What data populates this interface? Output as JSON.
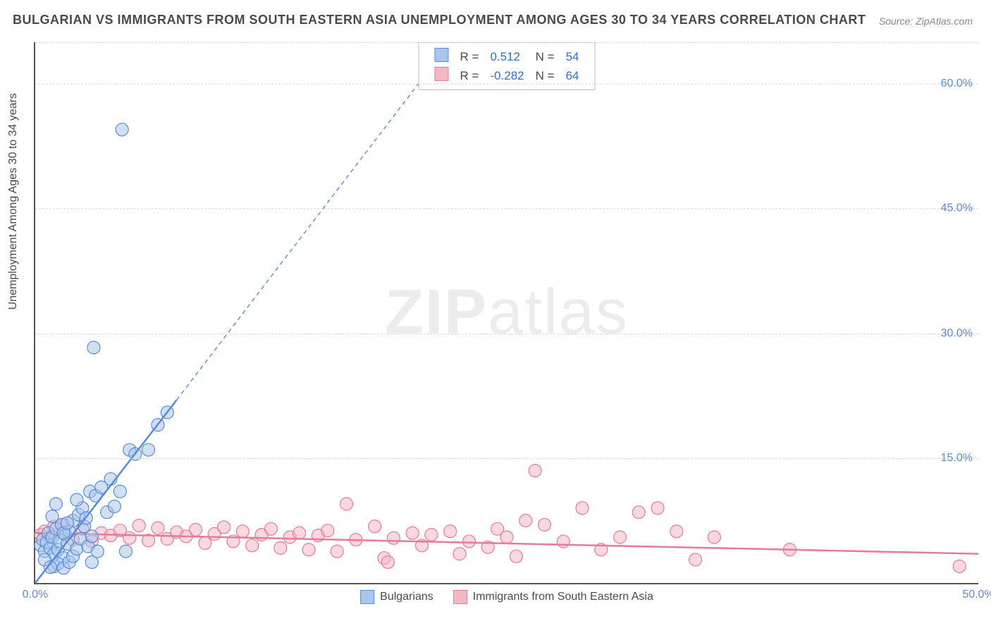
{
  "title": "BULGARIAN VS IMMIGRANTS FROM SOUTH EASTERN ASIA UNEMPLOYMENT AMONG AGES 30 TO 34 YEARS CORRELATION CHART",
  "source": "Source: ZipAtlas.com",
  "ylabel": "Unemployment Among Ages 30 to 34 years",
  "watermark_a": "ZIP",
  "watermark_b": "atlas",
  "chart": {
    "type": "scatter",
    "background_color": "#ffffff",
    "grid_color": "#d9d9d9",
    "axis_color": "#555555",
    "tick_color": "#5b8bd4",
    "xlim": [
      0,
      50
    ],
    "ylim": [
      0,
      65
    ],
    "yticks": [
      15,
      30,
      45,
      60
    ],
    "ytick_labels": [
      "15.0%",
      "30.0%",
      "45.0%",
      "60.0%"
    ],
    "xticks": [
      0,
      50
    ],
    "xtick_labels": [
      "0.0%",
      "50.0%"
    ],
    "marker_radius": 9,
    "marker_opacity": 0.55,
    "series": [
      {
        "name": "Bulgarians",
        "color_fill": "#a7c7ec",
        "color_stroke": "#5b8bd4",
        "r_label": "R =",
        "r_value": "0.512",
        "n_label": "N =",
        "n_value": "54",
        "trend": {
          "x1": 0,
          "y1": 0,
          "x2": 7.5,
          "y2": 22,
          "dash_to_x": 22,
          "dash_to_y": 65,
          "width": 2.5
        },
        "points": [
          [
            0.3,
            4.5
          ],
          [
            0.4,
            5.2
          ],
          [
            0.5,
            3.8
          ],
          [
            0.6,
            4.9
          ],
          [
            0.7,
            6.0
          ],
          [
            0.8,
            4.2
          ],
          [
            0.9,
            5.5
          ],
          [
            1.0,
            3.5
          ],
          [
            1.1,
            6.5
          ],
          [
            1.2,
            4.0
          ],
          [
            1.3,
            5.0
          ],
          [
            1.4,
            7.0
          ],
          [
            1.5,
            3.0
          ],
          [
            1.6,
            5.8
          ],
          [
            1.7,
            4.7
          ],
          [
            1.8,
            6.2
          ],
          [
            1.0,
            2.0
          ],
          [
            1.2,
            2.3
          ],
          [
            1.5,
            1.8
          ],
          [
            1.8,
            2.5
          ],
          [
            2.0,
            3.2
          ],
          [
            0.5,
            2.8
          ],
          [
            0.8,
            1.9
          ],
          [
            2.2,
            4.1
          ],
          [
            2.4,
            5.3
          ],
          [
            2.6,
            6.8
          ],
          [
            2.8,
            4.4
          ],
          [
            3.0,
            5.6
          ],
          [
            2.0,
            7.5
          ],
          [
            2.3,
            8.2
          ],
          [
            2.5,
            9.0
          ],
          [
            2.2,
            10.0
          ],
          [
            2.7,
            7.8
          ],
          [
            2.9,
            11.0
          ],
          [
            3.2,
            10.5
          ],
          [
            3.5,
            11.5
          ],
          [
            3.8,
            8.5
          ],
          [
            4.0,
            12.5
          ],
          [
            4.2,
            9.2
          ],
          [
            4.5,
            11.0
          ],
          [
            5.0,
            16.0
          ],
          [
            5.3,
            15.5
          ],
          [
            6.0,
            16.0
          ],
          [
            6.5,
            19.0
          ],
          [
            7.0,
            20.5
          ],
          [
            4.8,
            3.8
          ],
          [
            3.0,
            2.5
          ],
          [
            3.3,
            3.8
          ],
          [
            1.5,
            6.0
          ],
          [
            1.7,
            7.2
          ],
          [
            0.9,
            8.0
          ],
          [
            1.1,
            9.5
          ],
          [
            3.1,
            28.3
          ],
          [
            4.6,
            54.5
          ]
        ]
      },
      {
        "name": "Immigrants from South Eastern Asia",
        "color_fill": "#f4b8c5",
        "color_stroke": "#e77a97",
        "r_label": "R =",
        "r_value": "-0.282",
        "n_label": "N =",
        "n_value": "64",
        "trend": {
          "x1": 0,
          "y1": 6.0,
          "x2": 50,
          "y2": 3.5,
          "width": 2.5
        },
        "points": [
          [
            0.3,
            5.8
          ],
          [
            0.5,
            6.2
          ],
          [
            0.8,
            5.5
          ],
          [
            1.0,
            6.8
          ],
          [
            1.5,
            7.0
          ],
          [
            2.0,
            5.2
          ],
          [
            2.5,
            6.5
          ],
          [
            3.0,
            5.0
          ],
          [
            3.5,
            6.0
          ],
          [
            4.0,
            5.7
          ],
          [
            4.5,
            6.3
          ],
          [
            5.0,
            5.4
          ],
          [
            5.5,
            6.9
          ],
          [
            6.0,
            5.1
          ],
          [
            6.5,
            6.6
          ],
          [
            7.0,
            5.3
          ],
          [
            7.5,
            6.1
          ],
          [
            8.0,
            5.6
          ],
          [
            8.5,
            6.4
          ],
          [
            9.0,
            4.8
          ],
          [
            9.5,
            5.9
          ],
          [
            10.0,
            6.7
          ],
          [
            10.5,
            5.0
          ],
          [
            11.0,
            6.2
          ],
          [
            11.5,
            4.5
          ],
          [
            12.0,
            5.8
          ],
          [
            12.5,
            6.5
          ],
          [
            13.0,
            4.2
          ],
          [
            13.5,
            5.5
          ],
          [
            14.0,
            6.0
          ],
          [
            14.5,
            4.0
          ],
          [
            15.0,
            5.7
          ],
          [
            15.5,
            6.3
          ],
          [
            16.0,
            3.8
          ],
          [
            16.5,
            9.5
          ],
          [
            17.0,
            5.2
          ],
          [
            18.0,
            6.8
          ],
          [
            18.5,
            3.0
          ],
          [
            18.7,
            2.5
          ],
          [
            19.0,
            5.4
          ],
          [
            20.0,
            6.0
          ],
          [
            20.5,
            4.5
          ],
          [
            21.0,
            5.8
          ],
          [
            22.0,
            6.2
          ],
          [
            22.5,
            3.5
          ],
          [
            23.0,
            5.0
          ],
          [
            24.0,
            4.3
          ],
          [
            24.5,
            6.5
          ],
          [
            25.0,
            5.5
          ],
          [
            25.5,
            3.2
          ],
          [
            26.0,
            7.5
          ],
          [
            26.5,
            13.5
          ],
          [
            27.0,
            7.0
          ],
          [
            28.0,
            5.0
          ],
          [
            29.0,
            9.0
          ],
          [
            30.0,
            4.0
          ],
          [
            31.0,
            5.5
          ],
          [
            32.0,
            8.5
          ],
          [
            33.0,
            9.0
          ],
          [
            34.0,
            6.2
          ],
          [
            35.0,
            2.8
          ],
          [
            36.0,
            5.5
          ],
          [
            40.0,
            4.0
          ],
          [
            49.0,
            2.0
          ]
        ]
      }
    ]
  }
}
